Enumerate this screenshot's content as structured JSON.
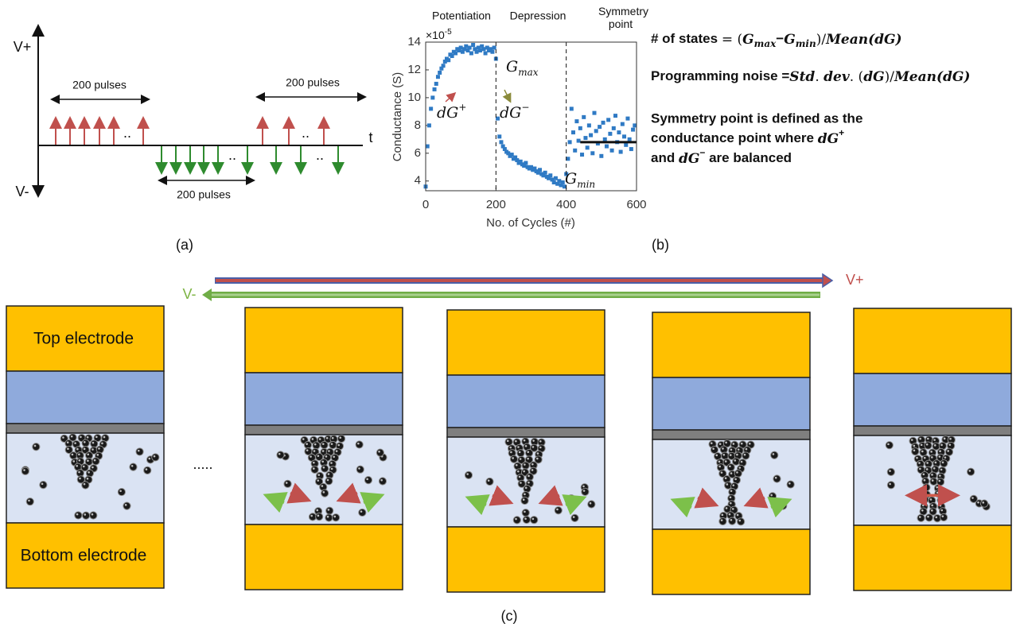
{
  "panel_a": {
    "label": "(a)",
    "v_plus": "V+",
    "v_minus": "V-",
    "time_axis": "t",
    "pulses_top_left": "200 pulses",
    "pulses_top_right": "200 pulses",
    "pulses_bottom": "200 pulses",
    "ellipsis": ".."
  },
  "chart_data": {
    "type": "scatter",
    "panel_label": "(b)",
    "phase_labels": [
      "Potentiation",
      "Depression",
      "Symmetry point"
    ],
    "multiplier": "×10",
    "multiplier_exponent": "-5",
    "xlabel": "No. of Cycles (#)",
    "ylabel": "Conductance (S)",
    "x": [
      0,
      5,
      10,
      15,
      20,
      25,
      30,
      35,
      40,
      45,
      50,
      55,
      60,
      65,
      70,
      75,
      80,
      85,
      90,
      95,
      100,
      105,
      110,
      115,
      120,
      125,
      130,
      135,
      140,
      145,
      150,
      155,
      160,
      165,
      170,
      175,
      180,
      185,
      190,
      195,
      200,
      205,
      210,
      215,
      220,
      225,
      230,
      235,
      240,
      245,
      250,
      255,
      260,
      265,
      270,
      275,
      280,
      285,
      290,
      295,
      300,
      305,
      310,
      315,
      320,
      325,
      330,
      335,
      340,
      345,
      350,
      355,
      360,
      365,
      370,
      375,
      380,
      385,
      390,
      395,
      400,
      405,
      410,
      415,
      420,
      425,
      430,
      435,
      440,
      445,
      450,
      455,
      460,
      465,
      470,
      475,
      480,
      485,
      490,
      495,
      500,
      505,
      510,
      515,
      520,
      525,
      530,
      535,
      540,
      545,
      550,
      555,
      560,
      565,
      570,
      575,
      580,
      585,
      590,
      595
    ],
    "values": [
      3.6,
      6.5,
      8.0,
      9.2,
      10.0,
      10.6,
      11.0,
      11.5,
      11.8,
      12.1,
      12.3,
      12.6,
      12.8,
      12.7,
      13.1,
      13.0,
      13.3,
      13.2,
      13.5,
      13.4,
      13.6,
      13.3,
      13.5,
      13.7,
      13.4,
      13.6,
      13.2,
      13.8,
      13.5,
      13.3,
      13.6,
      13.4,
      13.7,
      13.5,
      13.2,
      13.6,
      13.4,
      13.5,
      13.3,
      13.6,
      12.8,
      8.5,
      7.2,
      6.8,
      6.5,
      6.3,
      6.1,
      6.0,
      5.8,
      5.9,
      5.6,
      5.7,
      5.5,
      5.3,
      5.4,
      5.2,
      5.1,
      5.3,
      5.0,
      4.9,
      5.0,
      4.8,
      4.9,
      4.7,
      4.6,
      4.8,
      4.5,
      4.4,
      4.6,
      4.3,
      4.2,
      4.4,
      4.1,
      3.9,
      4.2,
      3.8,
      4.0,
      3.7,
      3.9,
      3.6,
      4.5,
      5.6,
      6.8,
      9.2,
      7.5,
      6.2,
      8.3,
      6.9,
      7.8,
      5.9,
      8.6,
      7.1,
      6.4,
      8.0,
      7.3,
      6.0,
      8.9,
      7.6,
      6.7,
      7.9,
      5.8,
      8.2,
      7.0,
      6.5,
      8.4,
      7.4,
      6.2,
      7.8,
      8.7,
      6.8,
      7.5,
      6.1,
      8.1,
      7.2,
      6.6,
      8.5,
      7.0,
      6.3,
      7.7,
      8.0
    ],
    "color": "#2f7ac4",
    "xlim": [
      0,
      600
    ],
    "xticks": [
      0,
      200,
      400,
      600
    ],
    "ylim": [
      3.3,
      14
    ],
    "yticks": [
      4,
      6,
      8,
      10,
      12,
      14
    ],
    "dividers": [
      200,
      400
    ],
    "symmetry_line": {
      "x": [
        440,
        600
      ],
      "y": 6.8
    },
    "annotations": {
      "g_max": [
        "G",
        "max"
      ],
      "dg_plus": [
        "dG",
        "+"
      ],
      "dg_minus": [
        "dG",
        "−"
      ],
      "g_min": [
        "G",
        "min"
      ]
    }
  },
  "equations": {
    "states": [
      "# of states ",
      "= (",
      "G",
      "max",
      "−",
      "G",
      "min",
      ")/",
      "Mean",
      "(dG)"
    ],
    "noise": [
      "Programming noise =",
      "Std",
      ". ",
      "dev",
      ". (",
      "dG",
      ")/",
      "Mean",
      "(dG)"
    ],
    "symmetry": [
      "Symmetry point is defined as the",
      "conductance point where ",
      "dG",
      "+",
      "and ",
      "dG",
      "−",
      " are balanced"
    ]
  },
  "panel_c": {
    "label": "(c)",
    "v_plus": "V+",
    "v_minus": "V-",
    "top_electrode": "Top electrode",
    "bottom_electrode": "Bottom electrode",
    "ellipsis": "....."
  }
}
